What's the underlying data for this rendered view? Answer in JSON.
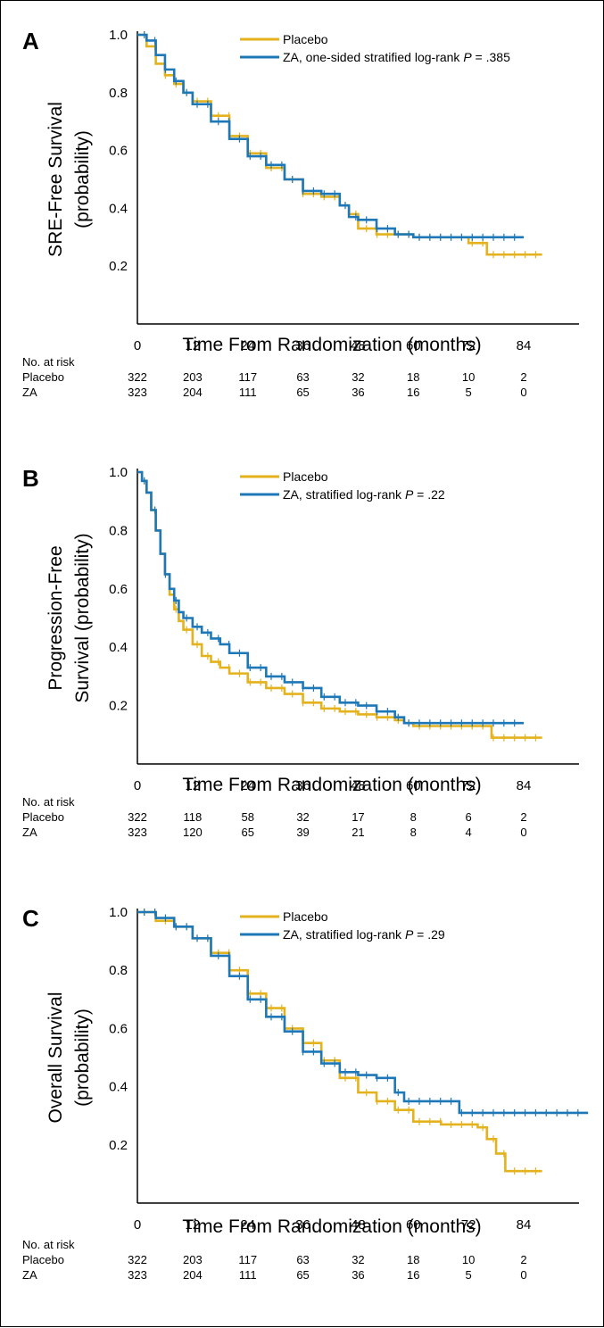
{
  "colors": {
    "placebo": "#E3B21C",
    "za": "#1E78B8",
    "axis": "#000000"
  },
  "chart_data": [
    {
      "type": "line",
      "panel_label": "A",
      "ylabel_lines": [
        "SRE-Free Survival",
        "(probability)"
      ],
      "xlabel": "Time From Randomization (months)",
      "xlim": [
        0,
        96
      ],
      "ylim": [
        0,
        1.0
      ],
      "xticks": [
        0,
        12,
        24,
        36,
        48,
        60,
        72,
        84
      ],
      "yticks": [
        0.2,
        0.4,
        0.6,
        0.8,
        1.0
      ],
      "legend": [
        {
          "label": "Placebo",
          "italic_p": "",
          "p_value": ""
        },
        {
          "label": "ZA, one-sided stratified log-rank ",
          "italic_p": "P",
          "p_value": " = .385"
        }
      ],
      "series": [
        {
          "name": "Placebo",
          "color_key": "placebo",
          "x": [
            0,
            2,
            4,
            6,
            8,
            10,
            12,
            16,
            20,
            24,
            28,
            32,
            36,
            40,
            44,
            46,
            48,
            52,
            56,
            60,
            66,
            71,
            72,
            75,
            76,
            80,
            88
          ],
          "y": [
            1.0,
            0.96,
            0.9,
            0.86,
            0.83,
            0.8,
            0.77,
            0.72,
            0.65,
            0.59,
            0.54,
            0.5,
            0.45,
            0.44,
            0.41,
            0.38,
            0.33,
            0.31,
            0.31,
            0.3,
            0.3,
            0.3,
            0.28,
            0.28,
            0.24,
            0.24,
            0.24
          ]
        },
        {
          "name": "ZA",
          "color_key": "za",
          "x": [
            0,
            2,
            4,
            6,
            8,
            10,
            12,
            16,
            20,
            24,
            28,
            32,
            36,
            40,
            44,
            46,
            48,
            52,
            56,
            60,
            66,
            72,
            78,
            84
          ],
          "y": [
            1.0,
            0.98,
            0.93,
            0.88,
            0.84,
            0.8,
            0.76,
            0.7,
            0.64,
            0.58,
            0.55,
            0.5,
            0.46,
            0.45,
            0.41,
            0.37,
            0.36,
            0.33,
            0.31,
            0.3,
            0.3,
            0.3,
            0.3,
            0.3
          ]
        }
      ],
      "at_risk": {
        "heading": "No. at risk",
        "rows": [
          {
            "label": "Placebo",
            "values": [
              "322",
              "203",
              "117",
              "63",
              "32",
              "18",
              "10",
              "2"
            ]
          },
          {
            "label": "ZA",
            "values": [
              "323",
              "204",
              "111",
              "65",
              "36",
              "16",
              "5",
              "0"
            ]
          }
        ]
      }
    },
    {
      "type": "line",
      "panel_label": "B",
      "ylabel_lines": [
        "Progression-Free",
        "Survival (probability)"
      ],
      "xlabel": "Time From Randomization (months)",
      "xlim": [
        0,
        96
      ],
      "ylim": [
        0,
        1.0
      ],
      "xticks": [
        0,
        12,
        24,
        36,
        48,
        60,
        72,
        84
      ],
      "yticks": [
        0.2,
        0.4,
        0.6,
        0.8,
        1.0
      ],
      "legend": [
        {
          "label": "Placebo",
          "italic_p": "",
          "p_value": ""
        },
        {
          "label": "ZA, stratified log-rank ",
          "italic_p": "P",
          "p_value": " = .22"
        }
      ],
      "series": [
        {
          "name": "Placebo",
          "color_key": "placebo",
          "x": [
            0,
            1,
            2,
            3,
            4,
            5,
            6,
            7,
            8,
            9,
            10,
            12,
            14,
            16,
            18,
            20,
            24,
            28,
            32,
            36,
            40,
            44,
            48,
            52,
            56,
            58,
            60,
            66,
            72,
            76,
            77,
            80,
            88
          ],
          "y": [
            1.0,
            0.97,
            0.93,
            0.87,
            0.8,
            0.72,
            0.65,
            0.58,
            0.53,
            0.49,
            0.46,
            0.41,
            0.37,
            0.35,
            0.33,
            0.31,
            0.28,
            0.26,
            0.24,
            0.21,
            0.19,
            0.18,
            0.17,
            0.16,
            0.15,
            0.14,
            0.13,
            0.13,
            0.13,
            0.13,
            0.09,
            0.09,
            0.09
          ]
        },
        {
          "name": "ZA",
          "color_key": "za",
          "x": [
            0,
            1,
            2,
            3,
            4,
            5,
            6,
            7,
            8,
            9,
            10,
            12,
            14,
            16,
            18,
            20,
            24,
            28,
            32,
            36,
            40,
            44,
            48,
            52,
            56,
            58,
            60,
            66,
            72,
            78,
            84
          ],
          "y": [
            1.0,
            0.97,
            0.93,
            0.87,
            0.8,
            0.72,
            0.65,
            0.6,
            0.56,
            0.52,
            0.5,
            0.47,
            0.45,
            0.43,
            0.41,
            0.38,
            0.33,
            0.3,
            0.28,
            0.26,
            0.23,
            0.21,
            0.2,
            0.18,
            0.16,
            0.14,
            0.14,
            0.14,
            0.14,
            0.14,
            0.14
          ]
        }
      ],
      "at_risk": {
        "heading": "No. at risk",
        "rows": [
          {
            "label": "Placebo",
            "values": [
              "322",
              "118",
              "58",
              "32",
              "17",
              "8",
              "6",
              "2"
            ]
          },
          {
            "label": "ZA",
            "values": [
              "323",
              "120",
              "65",
              "39",
              "21",
              "8",
              "4",
              "0"
            ]
          }
        ]
      }
    },
    {
      "type": "line",
      "panel_label": "C",
      "ylabel_lines": [
        "Overall Survival",
        "(probability)"
      ],
      "xlabel": "Time From Randomization (months)",
      "xlim": [
        0,
        96
      ],
      "ylim": [
        0,
        1.0
      ],
      "xticks": [
        0,
        12,
        24,
        36,
        48,
        60,
        72,
        84
      ],
      "yticks": [
        0.2,
        0.4,
        0.6,
        0.8,
        1.0
      ],
      "legend": [
        {
          "label": "Placebo",
          "italic_p": "",
          "p_value": ""
        },
        {
          "label": "ZA, stratified log-rank ",
          "italic_p": "P",
          "p_value": " = .29"
        }
      ],
      "series": [
        {
          "name": "Placebo",
          "color_key": "placebo",
          "x": [
            0,
            4,
            8,
            12,
            16,
            20,
            24,
            28,
            32,
            36,
            40,
            44,
            48,
            52,
            56,
            60,
            64,
            66,
            70,
            74,
            76,
            78,
            80,
            88
          ],
          "y": [
            1.0,
            0.97,
            0.95,
            0.91,
            0.86,
            0.8,
            0.72,
            0.67,
            0.6,
            0.55,
            0.49,
            0.43,
            0.38,
            0.35,
            0.32,
            0.28,
            0.28,
            0.27,
            0.27,
            0.26,
            0.22,
            0.17,
            0.11,
            0.11
          ]
        },
        {
          "name": "ZA",
          "color_key": "za",
          "x": [
            0,
            4,
            8,
            12,
            16,
            20,
            24,
            28,
            32,
            36,
            40,
            44,
            48,
            52,
            56,
            58,
            60,
            66,
            70,
            72,
            80,
            90,
            98
          ],
          "y": [
            1.0,
            0.98,
            0.95,
            0.91,
            0.85,
            0.78,
            0.7,
            0.64,
            0.59,
            0.52,
            0.48,
            0.45,
            0.44,
            0.43,
            0.38,
            0.35,
            0.35,
            0.35,
            0.31,
            0.31,
            0.31,
            0.31,
            0.31
          ]
        }
      ],
      "at_risk": {
        "heading": "No. at risk",
        "rows": [
          {
            "label": "Placebo",
            "values": [
              "322",
              "203",
              "117",
              "63",
              "32",
              "18",
              "10",
              "2"
            ]
          },
          {
            "label": "ZA",
            "values": [
              "323",
              "204",
              "111",
              "65",
              "36",
              "16",
              "5",
              "0"
            ]
          }
        ]
      }
    }
  ]
}
